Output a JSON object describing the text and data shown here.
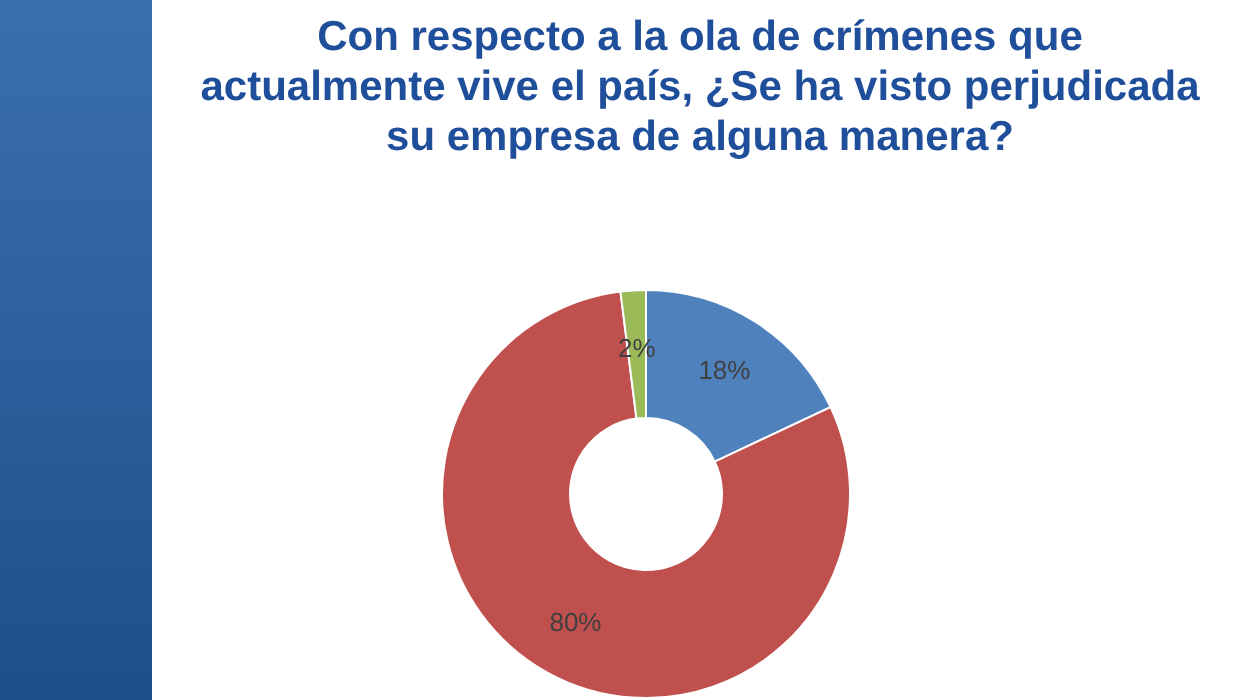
{
  "chart_data": {
    "type": "donut",
    "title": "Con respecto a la ola de crímenes que actualmente vive el país, ¿Se ha visto perjudicada su empresa de alguna manera?",
    "categories": [
      null,
      null,
      null
    ],
    "values": [
      18,
      80,
      2
    ],
    "colors": [
      "#4f81bd",
      "#c0504d",
      "#9bbb59"
    ],
    "value_labels": [
      "18%",
      "80%",
      "2%"
    ],
    "legend": false
  }
}
